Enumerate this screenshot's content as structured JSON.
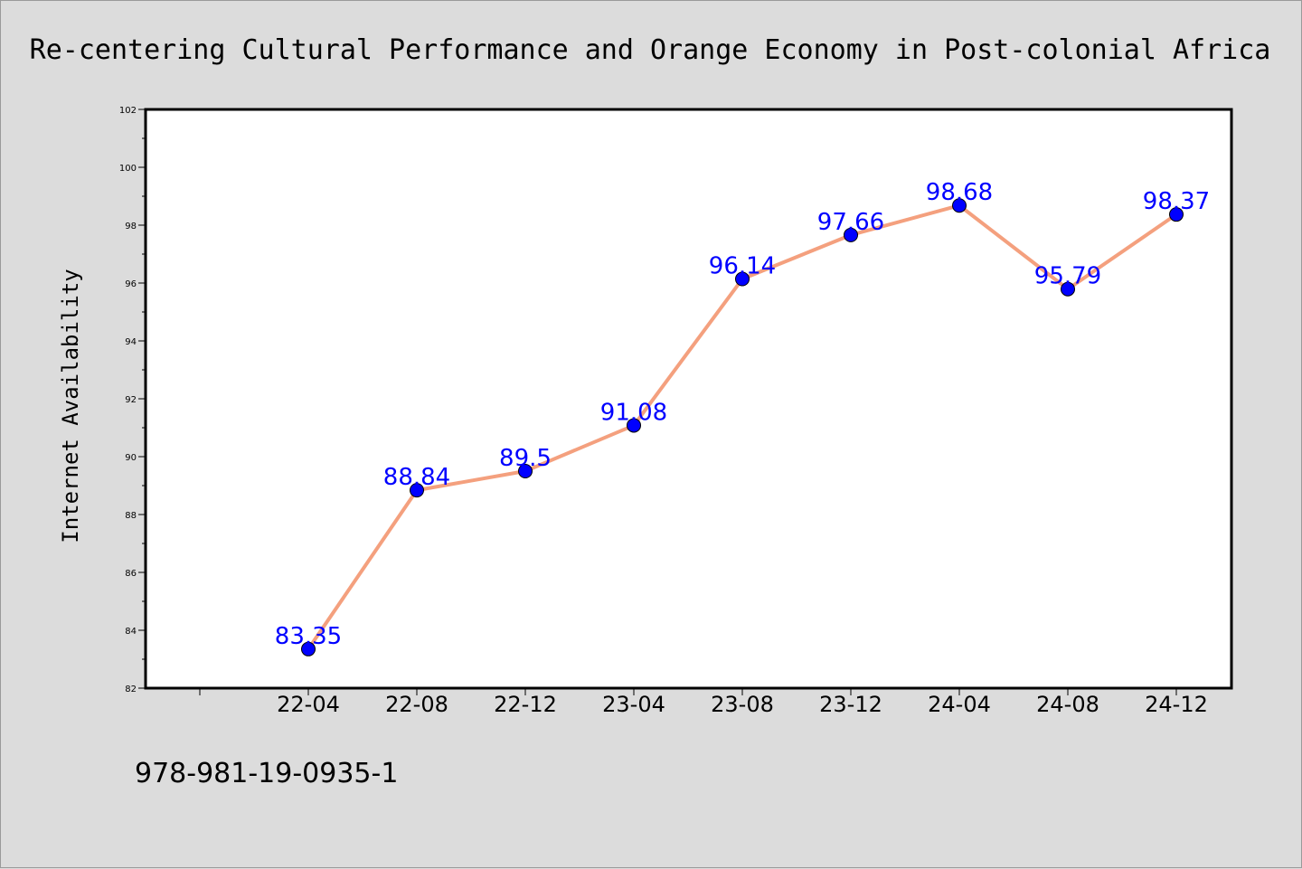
{
  "chart_data": {
    "type": "line",
    "title": "Re-centering Cultural Performance and Orange Economy in Post-colonial Africa",
    "ylabel": "Internet Availability",
    "xlabel": "",
    "categories": [
      "22-04",
      "22-08",
      "22-12",
      "23-04",
      "23-08",
      "23-12",
      "24-04",
      "24-08",
      "24-12"
    ],
    "values": [
      83.35,
      88.84,
      89.5,
      91.08,
      96.14,
      97.66,
      98.68,
      95.79,
      98.37
    ],
    "data_labels": [
      "83.35",
      "88.84",
      "89.5",
      "91.08",
      "96.14",
      "97.66",
      "98.68",
      "95.79",
      "98.37"
    ],
    "ylim": [
      82,
      102
    ],
    "yticks": [
      82,
      84,
      86,
      88,
      90,
      92,
      94,
      96,
      98,
      100,
      102
    ],
    "grid": false,
    "line_color": "#f4a07e",
    "marker_color": "#0000ff",
    "label_color": "#0000ff"
  },
  "footer": {
    "isbn": "978-981-19-0935-1"
  }
}
